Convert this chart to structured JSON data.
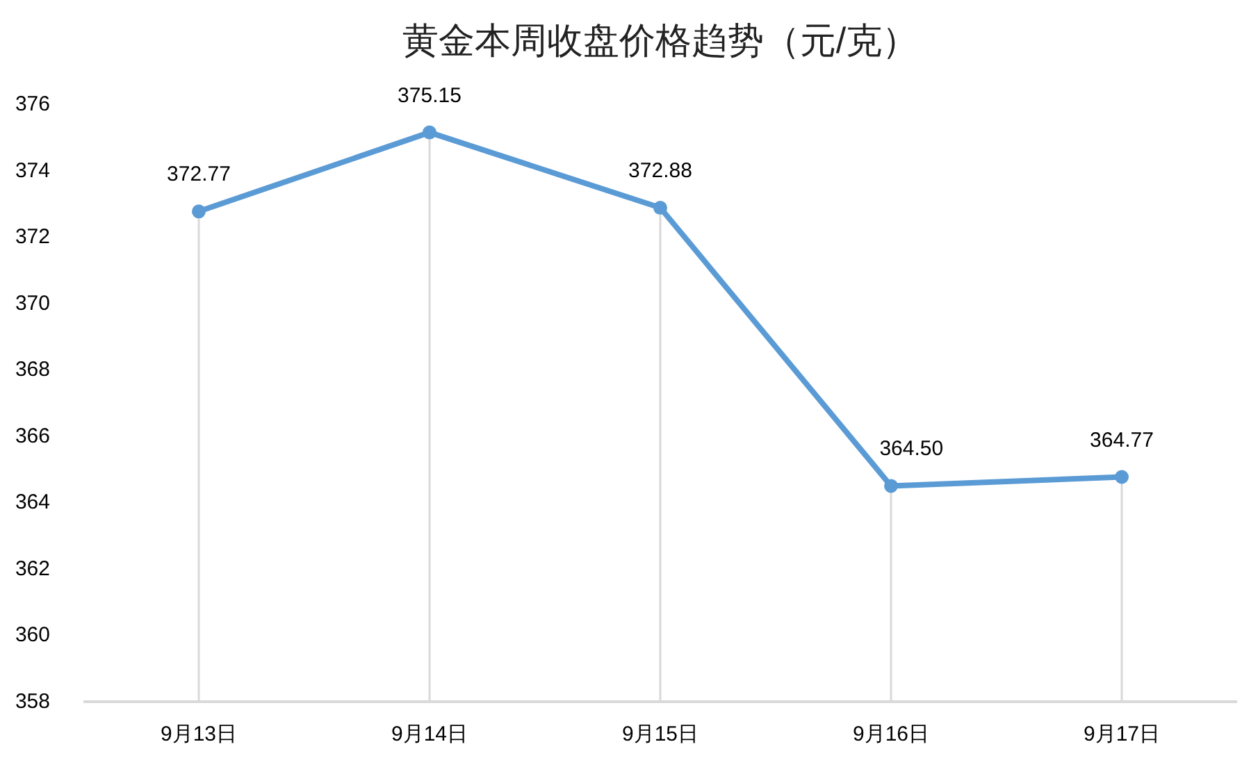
{
  "chart_data": {
    "type": "line",
    "title": "黄金本周收盘价格趋势（元/克）",
    "categories": [
      "9月13日",
      "9月14日",
      "9月15日",
      "9月16日",
      "9月17日"
    ],
    "series": [
      {
        "color": "#5b9bd5",
        "values": [
          372.77,
          375.15,
          372.88,
          364.5,
          364.77
        ],
        "value_labels": [
          "372.77",
          "375.15",
          "372.88",
          "364.50",
          "364.77"
        ]
      }
    ],
    "ylim": [
      358,
      376
    ],
    "yticks": [
      358,
      360,
      362,
      364,
      366,
      368,
      370,
      372,
      374,
      376
    ],
    "grid": "x",
    "marker": "circle",
    "line_style": "solid"
  }
}
